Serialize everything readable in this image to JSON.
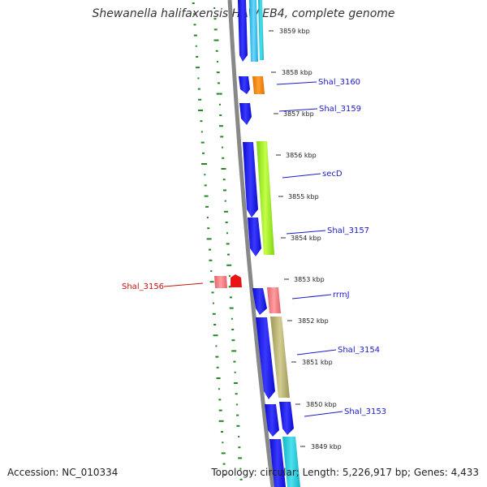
{
  "title": "Shewanella halifaxensis HAW-EB4, complete genome",
  "footer": {
    "accession": "Accession: NC_010334",
    "topology": "Topology: circular; Length: 5,226,917 bp; Genes: 4,433"
  },
  "kbp_labels": [
    "3859 kbp",
    "3858 kbp",
    "3857 kbp",
    "3856 kbp",
    "3855 kbp",
    "3854 kbp",
    "3853 kbp",
    "3852 kbp",
    "3851 kbp",
    "3850 kbp",
    "3849 kbp"
  ],
  "gene_labels": [
    "Shal_3160",
    "Shal_3159",
    "secD",
    "Shal_3157",
    "rrmJ",
    "Shal_3154",
    "Shal_3153",
    "Shal_3156"
  ],
  "colors": {
    "backbone": "#888888",
    "cds": "#1010ee",
    "label_line": "#1a1acc",
    "label_highlight": "#cc1111",
    "gc_ticks": "#228822"
  }
}
